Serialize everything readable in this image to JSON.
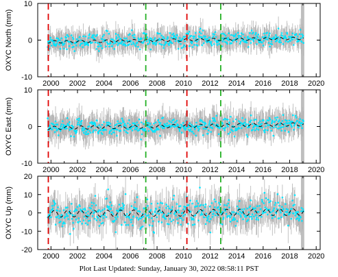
{
  "colors": {
    "error_bars": "#b3b3b3",
    "data": "#00e5ff",
    "fit_line": "#000000",
    "red_marker": "#e00000",
    "green_marker": "#22b022",
    "frame": "#000000",
    "background": "#ffffff"
  },
  "footer": {
    "text": "Plot Last Updated:   Sunday, January 30, 2022 08:58:11 PST"
  },
  "chart_data": [
    {
      "type": "scatter",
      "ylabel": "OXYC North (mm)",
      "xlim": [
        1999.0,
        2020.3
      ],
      "ylim": [
        -10,
        10
      ],
      "yticks": [
        -10,
        0,
        10
      ],
      "xticks": [
        2000,
        2002,
        2004,
        2006,
        2008,
        2010,
        2012,
        2014,
        2016,
        2018,
        2020
      ],
      "data_span": [
        1999.75,
        2019.05
      ],
      "data_scatter": 1.0,
      "error_bar_halfwidth": 2.5,
      "trend": {
        "amplitude": 0.35,
        "start": -0.5,
        "end": 0.5
      },
      "annotations": {
        "red_dashed_lines": [
          1999.8,
          2010.25
        ],
        "green_dashed_lines": [
          2007.15,
          2012.8
        ]
      }
    },
    {
      "type": "scatter",
      "ylabel": "OXYC East (mm)",
      "xlim": [
        1999.0,
        2020.3
      ],
      "ylim": [
        -10,
        10
      ],
      "yticks": [
        -10,
        0,
        10
      ],
      "xticks": [
        2000,
        2002,
        2004,
        2006,
        2008,
        2010,
        2012,
        2014,
        2016,
        2018,
        2020
      ],
      "data_span": [
        1999.75,
        2019.05
      ],
      "data_scatter": 1.1,
      "error_bar_halfwidth": 3.0,
      "trend": {
        "amplitude": 0.45,
        "start": -0.4,
        "end": 0.6
      },
      "annotations": {
        "red_dashed_lines": [
          1999.8,
          2010.25
        ],
        "green_dashed_lines": [
          2007.15,
          2012.8
        ]
      }
    },
    {
      "type": "scatter",
      "ylabel": "OXYC Up (mm)",
      "xlim": [
        1999.0,
        2020.3
      ],
      "ylim": [
        -20,
        20
      ],
      "yticks": [
        -20,
        -10,
        0,
        10,
        20
      ],
      "xticks": [
        2000,
        2002,
        2004,
        2006,
        2008,
        2010,
        2012,
        2014,
        2016,
        2018,
        2020
      ],
      "data_span": [
        1999.75,
        2019.05
      ],
      "data_scatter": 3.5,
      "error_bar_halfwidth": 7.0,
      "trend": {
        "amplitude": 1.8,
        "start": -0.5,
        "end": 0.5
      },
      "annotations": {
        "red_dashed_lines": [
          1999.8,
          2010.25
        ],
        "green_dashed_lines": [
          2007.15,
          2012.8
        ]
      }
    }
  ]
}
